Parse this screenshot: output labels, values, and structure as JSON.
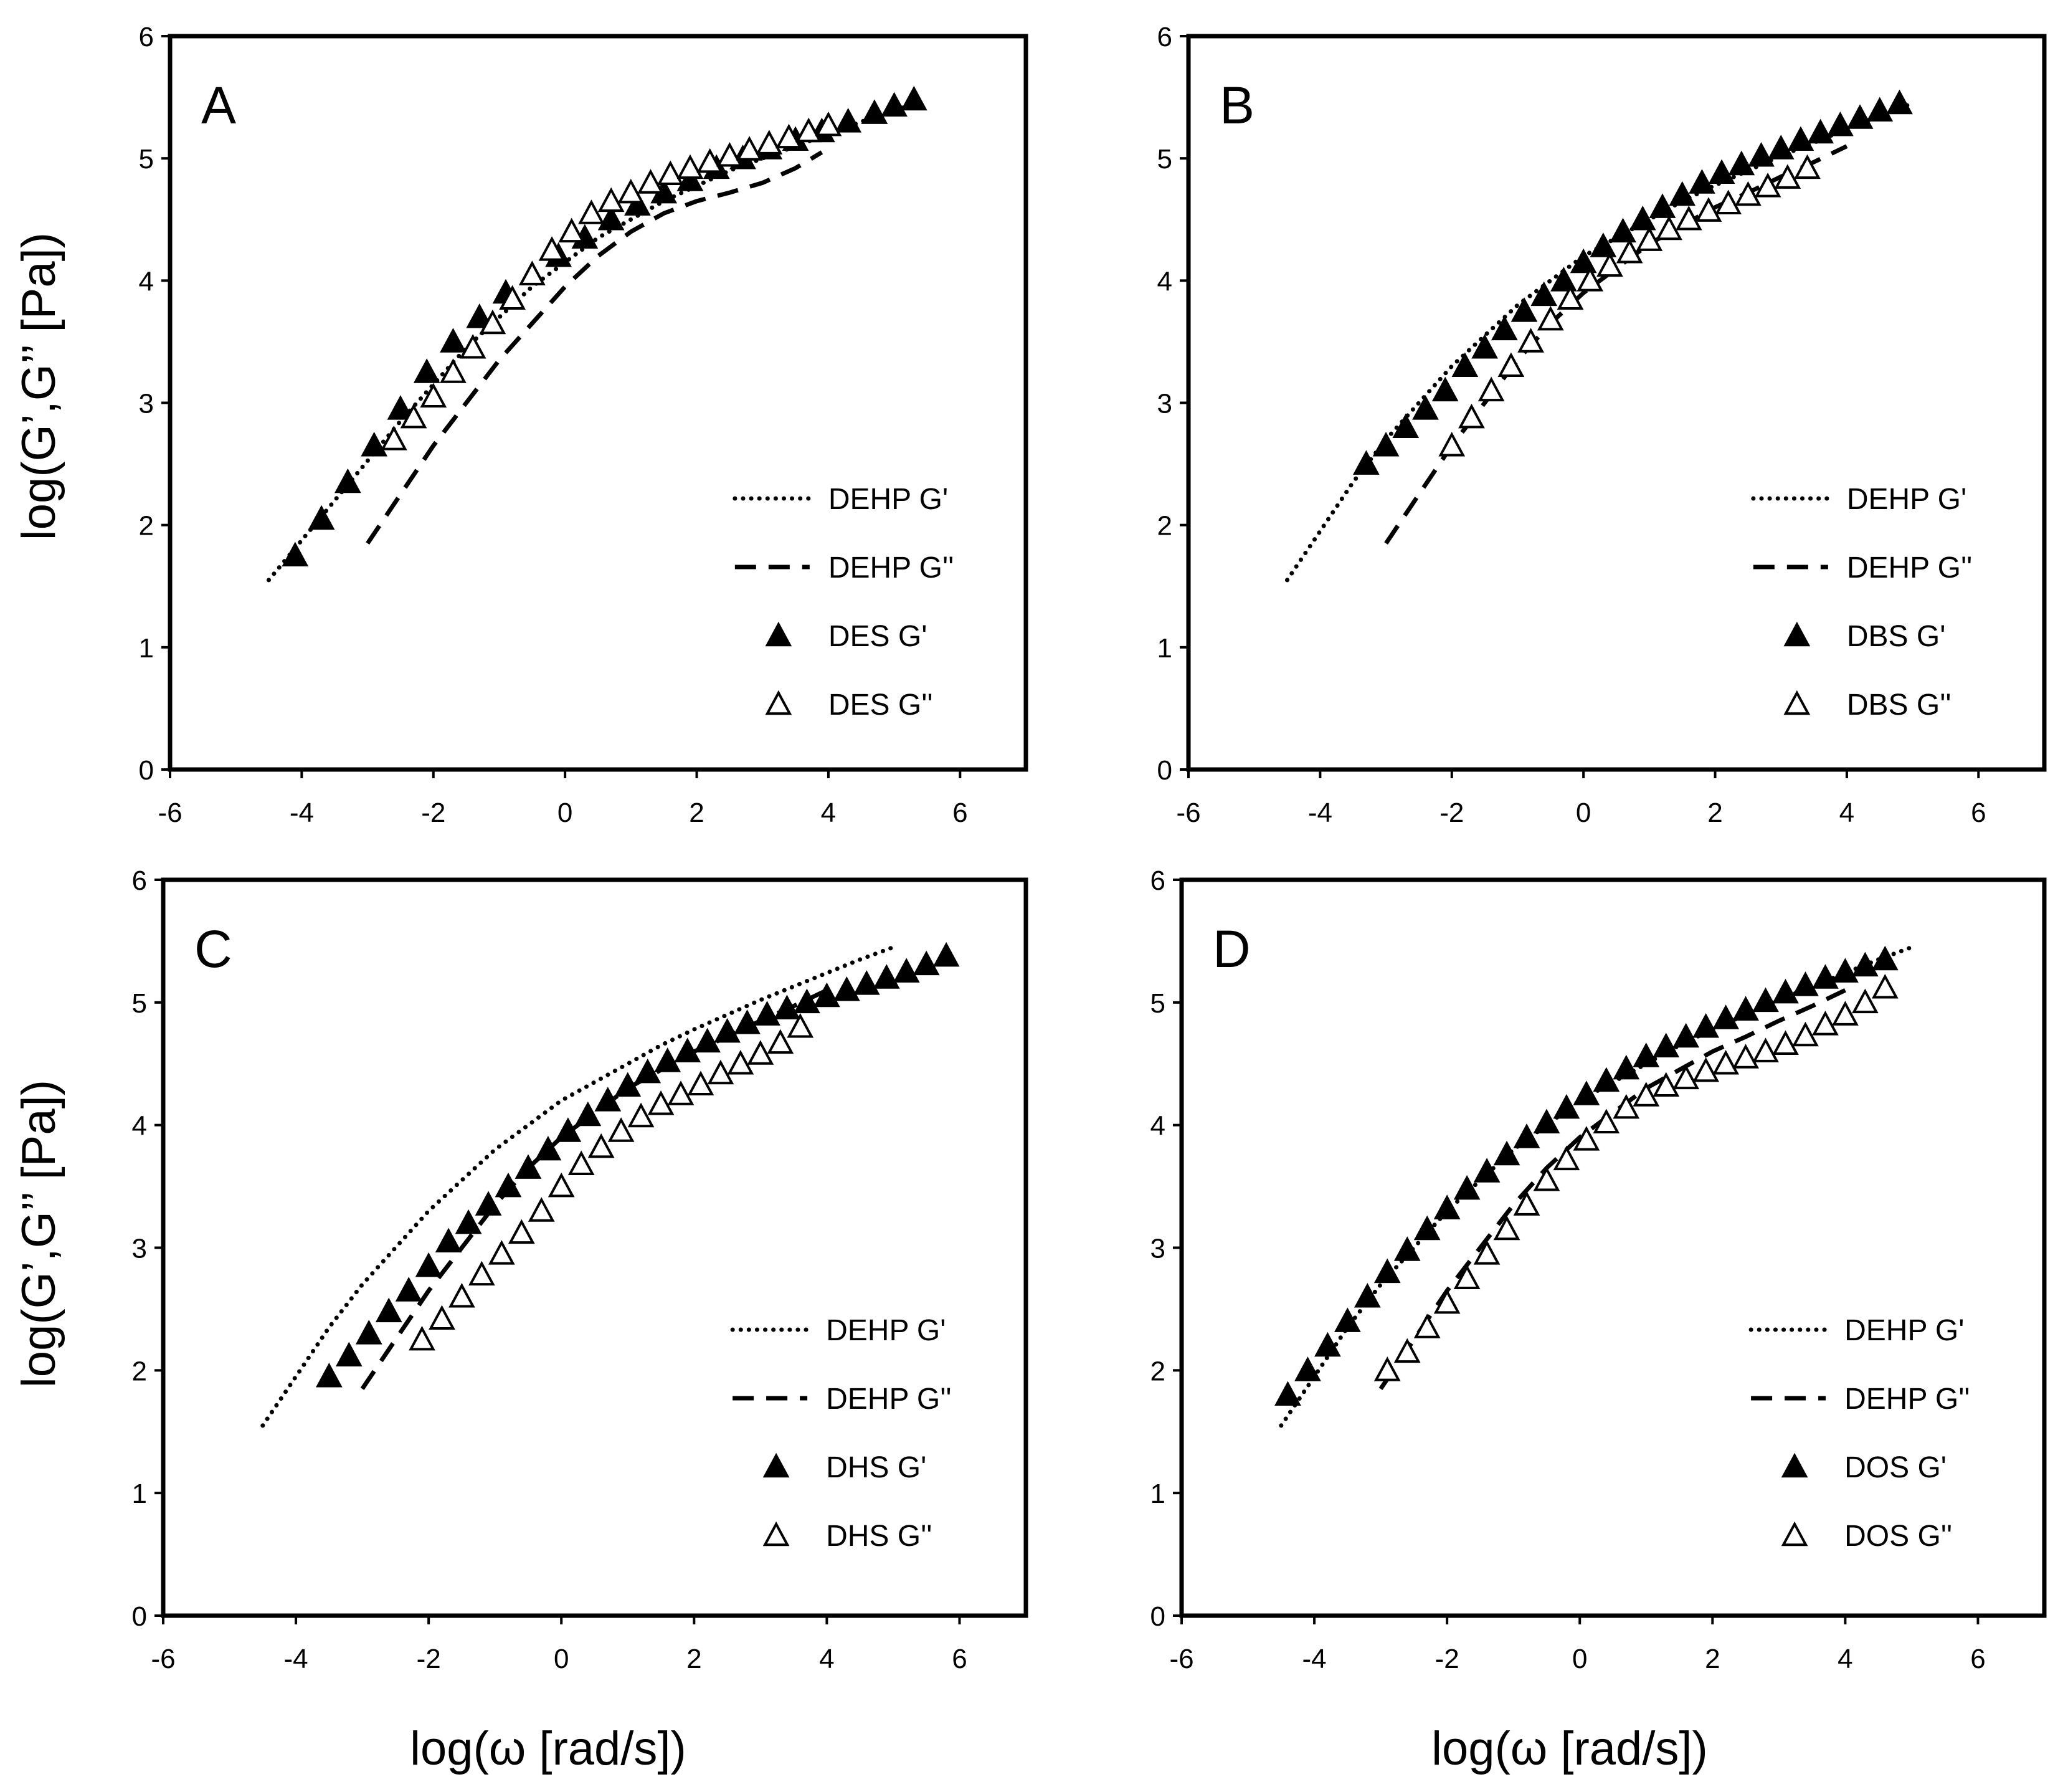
{
  "figure": {
    "xlabel": "log(ω  [rad/s])",
    "ylabel": "log(G’,G’’  [Pa])"
  },
  "chart_data": [
    {
      "type": "scatter",
      "panel": "A",
      "xlim": [
        -6,
        7
      ],
      "ylim": [
        0,
        6
      ],
      "xticks": [
        "-6",
        "-4",
        "-2",
        "0",
        "2",
        "4",
        "6"
      ],
      "yticks": [
        "0",
        "1",
        "2",
        "3",
        "4",
        "5",
        "6"
      ],
      "xlabel": "log(ω  [rad/s])",
      "ylabel": "log(G’,G’’  [Pa])",
      "series": [
        {
          "name": "DEHP G'",
          "style": "dotted",
          "x": [
            -4.5,
            -3.5,
            -2.5,
            -1.5,
            -0.5,
            0.5,
            1.5,
            2.5,
            3.5,
            4.5,
            5.3
          ],
          "y": [
            1.55,
            2.2,
            2.85,
            3.45,
            3.95,
            4.35,
            4.65,
            4.9,
            5.1,
            5.3,
            5.45
          ]
        },
        {
          "name": "DEHP G''",
          "style": "dashed",
          "x": [
            -3.0,
            -2.5,
            -2.0,
            -1.5,
            -1.0,
            -0.5,
            0.0,
            0.5,
            1.0,
            1.5,
            2.0,
            2.5,
            3.0,
            3.5,
            3.9
          ],
          "y": [
            1.85,
            2.25,
            2.65,
            3.0,
            3.35,
            3.65,
            3.95,
            4.2,
            4.4,
            4.55,
            4.65,
            4.72,
            4.8,
            4.92,
            5.05
          ]
        },
        {
          "name": "DES G'",
          "style": "filled-triangle",
          "x": [
            -4.1,
            -3.7,
            -3.3,
            -2.9,
            -2.5,
            -2.1,
            -1.7,
            -1.3,
            -0.9,
            -0.5,
            -0.1,
            0.3,
            0.7,
            1.1,
            1.5,
            1.9,
            2.3,
            2.7,
            3.1,
            3.5,
            3.9,
            4.3,
            4.7,
            5.0,
            5.3
          ],
          "y": [
            1.75,
            2.05,
            2.35,
            2.65,
            2.95,
            3.25,
            3.5,
            3.7,
            3.9,
            4.05,
            4.2,
            4.35,
            4.5,
            4.62,
            4.72,
            4.82,
            4.92,
            5.0,
            5.08,
            5.15,
            5.22,
            5.3,
            5.37,
            5.43,
            5.48
          ]
        },
        {
          "name": "DES G''",
          "style": "open-triangle",
          "x": [
            -2.6,
            -2.3,
            -2.0,
            -1.7,
            -1.4,
            -1.1,
            -0.8,
            -0.5,
            -0.2,
            0.1,
            0.4,
            0.7,
            1.0,
            1.3,
            1.6,
            1.9,
            2.2,
            2.5,
            2.8,
            3.1,
            3.4,
            3.7,
            4.0
          ],
          "y": [
            2.7,
            2.88,
            3.05,
            3.25,
            3.45,
            3.65,
            3.85,
            4.05,
            4.25,
            4.4,
            4.55,
            4.65,
            4.72,
            4.8,
            4.87,
            4.92,
            4.97,
            5.02,
            5.07,
            5.12,
            5.17,
            5.22,
            5.27
          ]
        }
      ],
      "legend": [
        {
          "label": "DEHP  G'",
          "marker": "dotted"
        },
        {
          "label": "DEHP  G''",
          "marker": "dashed"
        },
        {
          "label": "DES G'",
          "marker": "filled-triangle"
        },
        {
          "label": "DES G''",
          "marker": "open-triangle"
        }
      ]
    },
    {
      "type": "scatter",
      "panel": "B",
      "xlim": [
        -6,
        7
      ],
      "ylim": [
        0,
        6
      ],
      "xticks": [
        "-6",
        "-4",
        "-2",
        "0",
        "2",
        "4",
        "6"
      ],
      "yticks": [
        "0",
        "1",
        "2",
        "3",
        "4",
        "5",
        "6"
      ],
      "xlabel": "log(ω  [rad/s])",
      "ylabel": "log(G’,G’’  [Pa])",
      "series": [
        {
          "name": "DEHP G'",
          "style": "dotted",
          "x": [
            -4.5,
            -4.0,
            -3.5,
            -3.0,
            -2.5,
            -2.0,
            -1.5,
            -1.0,
            -0.5,
            0.0,
            0.5,
            1.0,
            1.5,
            2.0,
            2.5,
            3.0,
            3.5,
            4.0,
            4.5,
            5.0
          ],
          "y": [
            1.55,
            1.95,
            2.35,
            2.7,
            3.0,
            3.3,
            3.55,
            3.8,
            4.0,
            4.2,
            4.35,
            4.5,
            4.65,
            4.78,
            4.9,
            5.02,
            5.13,
            5.24,
            5.35,
            5.45
          ]
        },
        {
          "name": "DEHP G''",
          "style": "dashed",
          "x": [
            -3.0,
            -2.5,
            -2.0,
            -1.5,
            -1.0,
            -0.5,
            0.0,
            0.5,
            1.0,
            1.5,
            2.0,
            2.5,
            3.0,
            3.5,
            4.0
          ],
          "y": [
            1.85,
            2.25,
            2.65,
            3.0,
            3.35,
            3.65,
            3.9,
            4.1,
            4.3,
            4.45,
            4.6,
            4.72,
            4.85,
            4.97,
            5.1
          ]
        },
        {
          "name": "DBS G'",
          "style": "filled-triangle",
          "x": [
            -3.3,
            -3.0,
            -2.7,
            -2.4,
            -2.1,
            -1.8,
            -1.5,
            -1.2,
            -0.9,
            -0.6,
            -0.3,
            0.0,
            0.3,
            0.6,
            0.9,
            1.2,
            1.5,
            1.8,
            2.1,
            2.4,
            2.7,
            3.0,
            3.3,
            3.6,
            3.9,
            4.2,
            4.5,
            4.8
          ],
          "y": [
            2.5,
            2.65,
            2.8,
            2.95,
            3.1,
            3.3,
            3.45,
            3.6,
            3.75,
            3.88,
            4.0,
            4.15,
            4.28,
            4.4,
            4.5,
            4.6,
            4.7,
            4.8,
            4.88,
            4.95,
            5.02,
            5.08,
            5.15,
            5.21,
            5.27,
            5.33,
            5.39,
            5.45
          ]
        },
        {
          "name": "DBS G''",
          "style": "open-triangle",
          "x": [
            -2.0,
            -1.7,
            -1.4,
            -1.1,
            -0.8,
            -0.5,
            -0.2,
            0.1,
            0.4,
            0.7,
            1.0,
            1.3,
            1.6,
            1.9,
            2.2,
            2.5,
            2.8,
            3.1,
            3.4
          ],
          "y": [
            2.65,
            2.88,
            3.1,
            3.3,
            3.5,
            3.68,
            3.85,
            4.0,
            4.12,
            4.23,
            4.33,
            4.42,
            4.5,
            4.57,
            4.63,
            4.7,
            4.77,
            4.84,
            4.92
          ]
        }
      ],
      "legend": [
        {
          "label": "DEHP  G'",
          "marker": "dotted"
        },
        {
          "label": "DEHP  G''",
          "marker": "dashed"
        },
        {
          "label": "DBS G'",
          "marker": "filled-triangle"
        },
        {
          "label": "DBS G''",
          "marker": "open-triangle"
        }
      ]
    },
    {
      "type": "scatter",
      "panel": "C",
      "xlim": [
        -6,
        7
      ],
      "ylim": [
        0,
        6
      ],
      "xticks": [
        "-6",
        "-4",
        "-2",
        "0",
        "2",
        "4",
        "6"
      ],
      "yticks": [
        "0",
        "1",
        "2",
        "3",
        "4",
        "5",
        "6"
      ],
      "xlabel": "log(ω  [rad/s])",
      "ylabel": "log(G’,G’’  [Pa])",
      "series": [
        {
          "name": "DEHP G'",
          "style": "dotted",
          "x": [
            -4.5,
            -4.0,
            -3.5,
            -3.0,
            -2.5,
            -2.0,
            -1.5,
            -1.0,
            -0.5,
            0.0,
            0.5,
            1.0,
            1.5,
            2.0,
            2.5,
            3.0,
            3.5,
            4.0,
            4.5,
            5.0
          ],
          "y": [
            1.55,
            1.95,
            2.35,
            2.7,
            3.0,
            3.3,
            3.55,
            3.8,
            4.0,
            4.2,
            4.35,
            4.5,
            4.65,
            4.78,
            4.9,
            5.02,
            5.13,
            5.24,
            5.35,
            5.45
          ]
        },
        {
          "name": "DEHP G''",
          "style": "dashed",
          "x": [
            -3.0,
            -2.5,
            -2.0,
            -1.5,
            -1.0,
            -0.5,
            0.0,
            0.5,
            1.0,
            1.5,
            2.0,
            2.5,
            3.0,
            3.5,
            4.0
          ],
          "y": [
            1.85,
            2.25,
            2.65,
            3.0,
            3.35,
            3.65,
            3.9,
            4.1,
            4.3,
            4.45,
            4.6,
            4.72,
            4.85,
            4.97,
            5.1
          ]
        },
        {
          "name": "DHS G'",
          "style": "filled-triangle",
          "x": [
            -3.5,
            -3.2,
            -2.9,
            -2.6,
            -2.3,
            -2.0,
            -1.7,
            -1.4,
            -1.1,
            -0.8,
            -0.5,
            -0.2,
            0.1,
            0.4,
            0.7,
            1.0,
            1.3,
            1.6,
            1.9,
            2.2,
            2.5,
            2.8,
            3.1,
            3.4,
            3.7,
            4.0,
            4.3,
            4.6,
            4.9,
            5.2,
            5.5,
            5.8
          ],
          "y": [
            1.95,
            2.12,
            2.3,
            2.48,
            2.65,
            2.85,
            3.05,
            3.2,
            3.35,
            3.5,
            3.65,
            3.8,
            3.95,
            4.08,
            4.2,
            4.32,
            4.43,
            4.52,
            4.6,
            4.68,
            4.76,
            4.83,
            4.9,
            4.95,
            5.0,
            5.05,
            5.1,
            5.15,
            5.2,
            5.25,
            5.31,
            5.38
          ]
        },
        {
          "name": "DHS G''",
          "style": "open-triangle",
          "x": [
            -2.1,
            -1.8,
            -1.5,
            -1.2,
            -0.9,
            -0.6,
            -0.3,
            0.0,
            0.3,
            0.6,
            0.9,
            1.2,
            1.5,
            1.8,
            2.1,
            2.4,
            2.7,
            3.0,
            3.3,
            3.6
          ],
          "y": [
            2.25,
            2.42,
            2.6,
            2.78,
            2.95,
            3.12,
            3.3,
            3.5,
            3.68,
            3.82,
            3.95,
            4.07,
            4.17,
            4.25,
            4.33,
            4.42,
            4.5,
            4.58,
            4.67,
            4.8
          ]
        }
      ],
      "legend": [
        {
          "label": "DEHP  G'",
          "marker": "dotted"
        },
        {
          "label": "DEHP  G''",
          "marker": "dashed"
        },
        {
          "label": "DHS G'",
          "marker": "filled-triangle"
        },
        {
          "label": "DHS G''",
          "marker": "open-triangle"
        }
      ]
    },
    {
      "type": "scatter",
      "panel": "D",
      "xlim": [
        -6,
        7
      ],
      "ylim": [
        0,
        6
      ],
      "xticks": [
        "-6",
        "-4",
        "-2",
        "0",
        "2",
        "4",
        "6"
      ],
      "yticks": [
        "0",
        "1",
        "2",
        "3",
        "4",
        "5",
        "6"
      ],
      "xlabel": "log(ω  [rad/s])",
      "ylabel": "log(G’,G’’  [Pa])",
      "series": [
        {
          "name": "DEHP G'",
          "style": "dotted",
          "x": [
            -4.5,
            -4.0,
            -3.5,
            -3.0,
            -2.5,
            -2.0,
            -1.5,
            -1.0,
            -0.5,
            0.0,
            0.5,
            1.0,
            1.5,
            2.0,
            2.5,
            3.0,
            3.5,
            4.0,
            4.5,
            5.0
          ],
          "y": [
            1.55,
            1.95,
            2.35,
            2.7,
            3.0,
            3.3,
            3.55,
            3.8,
            4.0,
            4.2,
            4.35,
            4.5,
            4.65,
            4.78,
            4.9,
            5.02,
            5.13,
            5.24,
            5.35,
            5.45
          ]
        },
        {
          "name": "DEHP G''",
          "style": "dashed",
          "x": [
            -3.0,
            -2.5,
            -2.0,
            -1.5,
            -1.0,
            -0.5,
            0.0,
            0.5,
            1.0,
            1.5,
            2.0,
            2.5,
            3.0,
            3.5,
            4.0
          ],
          "y": [
            1.85,
            2.25,
            2.65,
            3.0,
            3.35,
            3.65,
            3.9,
            4.1,
            4.3,
            4.45,
            4.6,
            4.72,
            4.85,
            4.97,
            5.1
          ]
        },
        {
          "name": "DOS G'",
          "style": "filled-triangle",
          "x": [
            -4.4,
            -4.1,
            -3.8,
            -3.5,
            -3.2,
            -2.9,
            -2.6,
            -2.3,
            -2.0,
            -1.7,
            -1.4,
            -1.1,
            -0.8,
            -0.5,
            -0.2,
            0.1,
            0.4,
            0.7,
            1.0,
            1.3,
            1.6,
            1.9,
            2.2,
            2.5,
            2.8,
            3.1,
            3.4,
            3.7,
            4.0,
            4.3,
            4.6
          ],
          "y": [
            1.8,
            2.0,
            2.2,
            2.4,
            2.6,
            2.8,
            2.98,
            3.15,
            3.32,
            3.48,
            3.62,
            3.76,
            3.9,
            4.02,
            4.14,
            4.25,
            4.36,
            4.46,
            4.56,
            4.64,
            4.72,
            4.8,
            4.87,
            4.94,
            5.01,
            5.08,
            5.14,
            5.2,
            5.25,
            5.3,
            5.35
          ]
        },
        {
          "name": "DOS G''",
          "style": "open-triangle",
          "x": [
            -2.9,
            -2.6,
            -2.3,
            -2.0,
            -1.7,
            -1.4,
            -1.1,
            -0.8,
            -0.5,
            -0.2,
            0.1,
            0.4,
            0.7,
            1.0,
            1.3,
            1.6,
            1.9,
            2.2,
            2.5,
            2.8,
            3.1,
            3.4,
            3.7,
            4.0,
            4.3,
            4.6
          ],
          "y": [
            2.0,
            2.15,
            2.35,
            2.55,
            2.75,
            2.95,
            3.15,
            3.35,
            3.55,
            3.72,
            3.88,
            4.02,
            4.14,
            4.24,
            4.32,
            4.38,
            4.44,
            4.5,
            4.55,
            4.6,
            4.66,
            4.73,
            4.82,
            4.9,
            5.0,
            5.12
          ]
        }
      ],
      "legend": [
        {
          "label": "DEHP  G'",
          "marker": "dotted"
        },
        {
          "label": "DEHP  G''",
          "marker": "dashed"
        },
        {
          "label": "DOS G'",
          "marker": "filled-triangle"
        },
        {
          "label": "DOS G''",
          "marker": "open-triangle"
        }
      ]
    }
  ]
}
